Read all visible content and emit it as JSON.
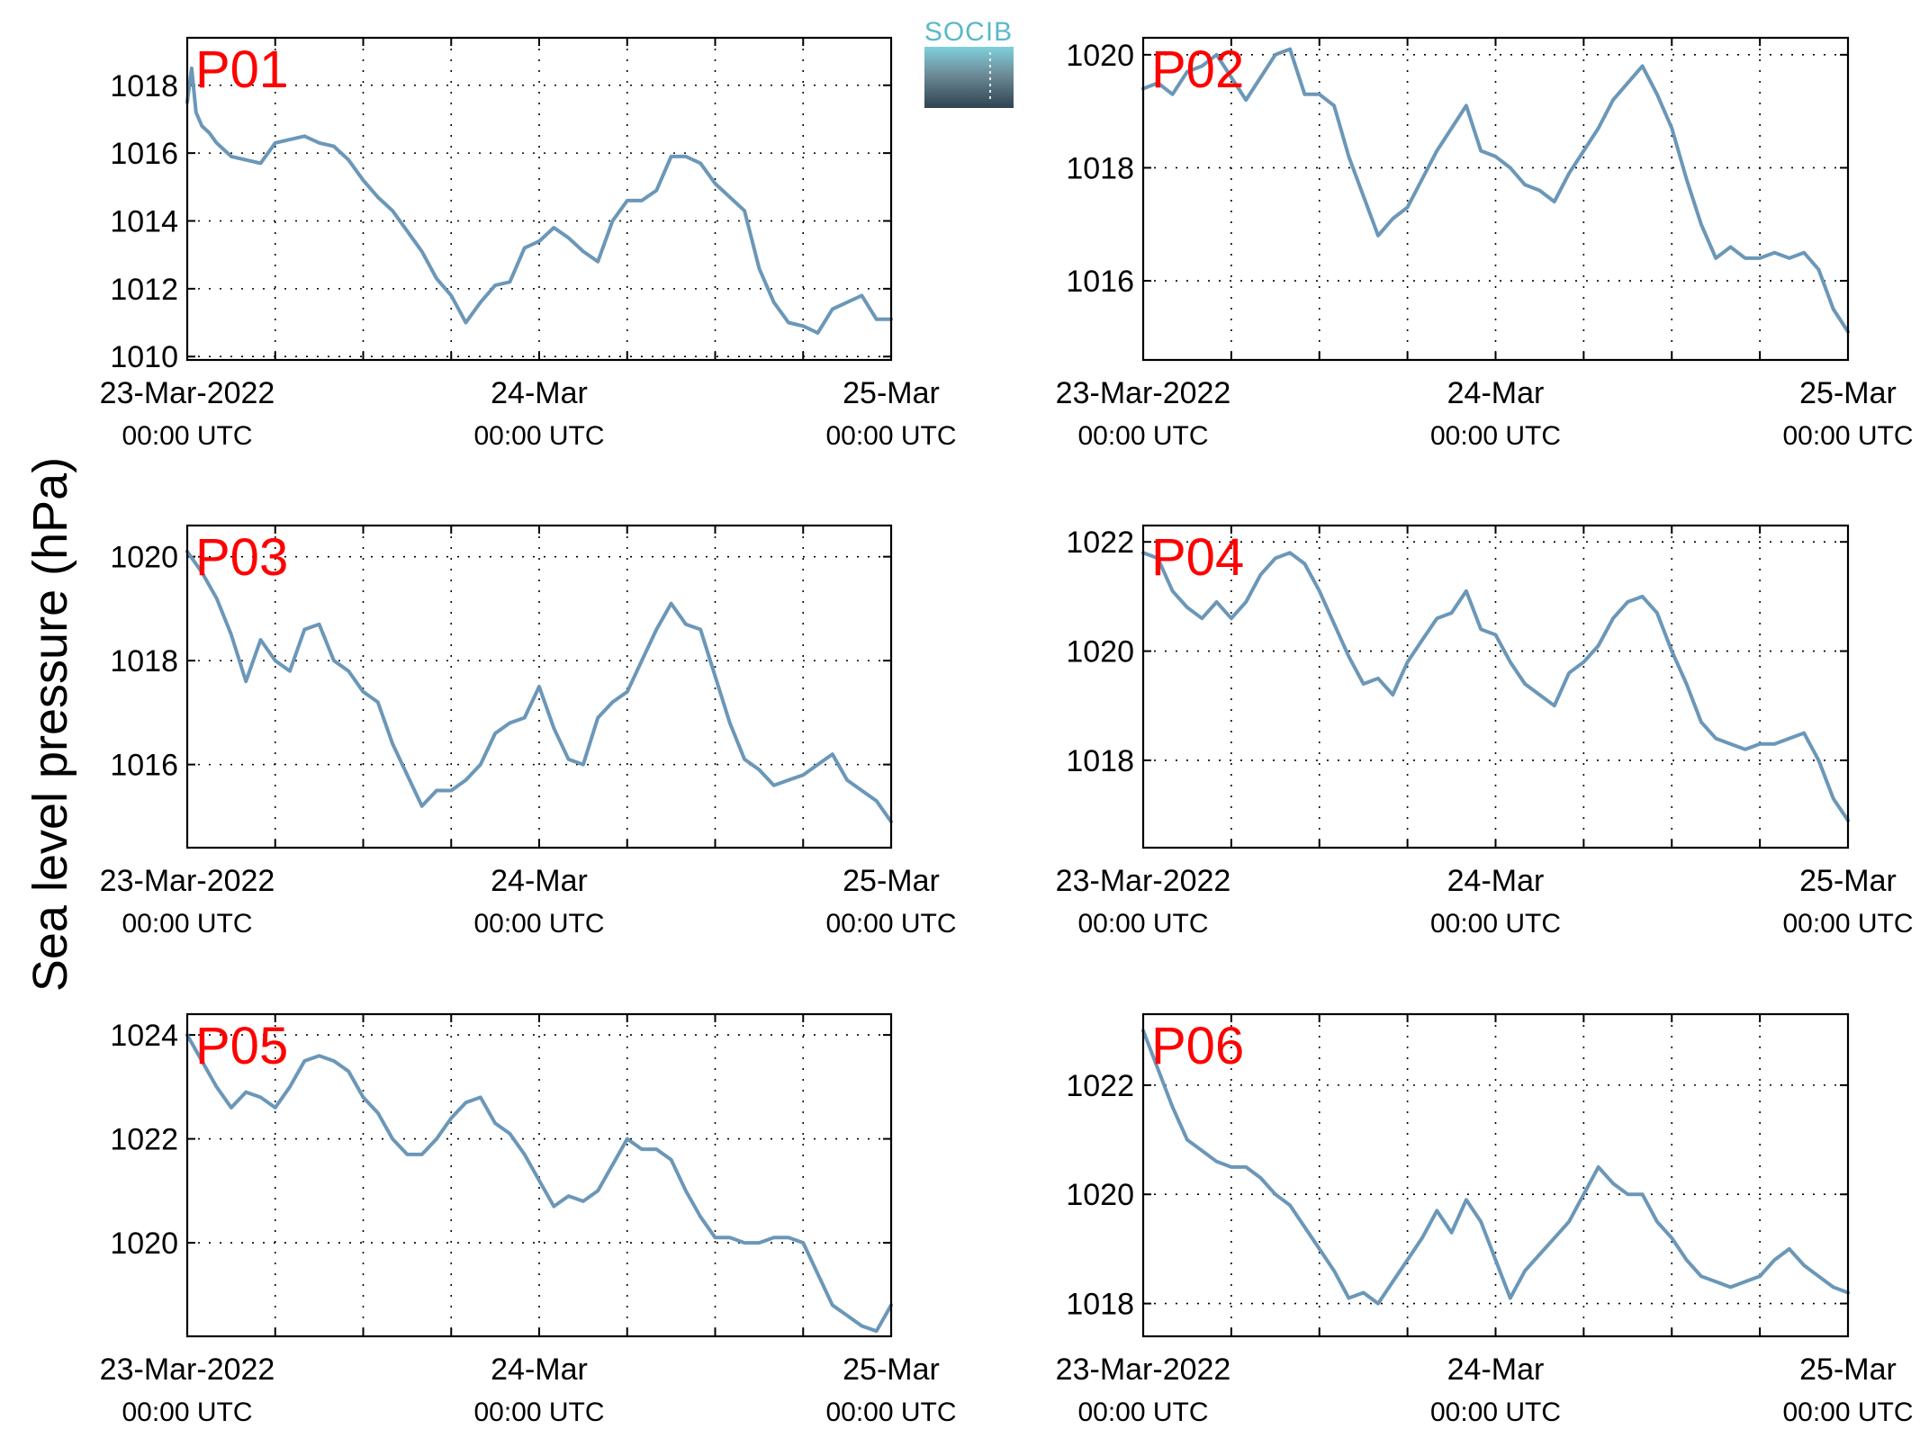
{
  "ylabel": "Sea level pressure (hPa)",
  "logo": {
    "text": "SOCIB"
  },
  "chart_data": [
    {
      "type": "line",
      "title": "P01",
      "xlim": [
        "2022-03-23T00:00Z",
        "2022-03-25T00:00Z"
      ],
      "ylim": [
        1009.9,
        1019.4
      ],
      "yticks": [
        1010,
        1012,
        1014,
        1016,
        1018
      ],
      "xticks": [
        {
          "label": "23-Mar-2022",
          "sub": "00:00 UTC"
        },
        {
          "label": "24-Mar",
          "sub": "00:00 UTC"
        },
        {
          "label": "25-Mar",
          "sub": "00:00 UTC"
        }
      ],
      "grid": true,
      "color": "#6b97b8",
      "series": [
        {
          "hours": [
            0,
            0.3,
            0.6,
            1,
            1.5,
            2,
            3,
            4,
            5,
            6,
            7,
            8,
            9,
            10,
            11,
            12,
            13,
            14,
            15,
            16,
            17,
            18,
            19,
            20,
            21,
            22,
            23,
            24,
            25,
            26,
            27,
            28,
            29,
            30,
            31,
            32,
            33,
            34,
            35,
            36,
            37,
            38,
            39,
            40,
            41,
            42,
            43,
            44,
            45,
            46,
            47,
            48
          ],
          "values": [
            1017.5,
            1018.5,
            1017.2,
            1016.8,
            1016.6,
            1016.3,
            1015.9,
            1015.8,
            1015.7,
            1016.3,
            1016.4,
            1016.5,
            1016.3,
            1016.2,
            1015.8,
            1015.2,
            1014.7,
            1014.3,
            1013.7,
            1013.1,
            1012.3,
            1011.8,
            1011.0,
            1011.6,
            1012.1,
            1012.2,
            1013.2,
            1013.4,
            1013.8,
            1013.5,
            1013.1,
            1012.8,
            1014.0,
            1014.6,
            1014.6,
            1014.9,
            1015.9,
            1015.9,
            1015.7,
            1015.1,
            1014.7,
            1014.3,
            1012.6,
            1011.6,
            1011.0,
            1010.9,
            1010.7,
            1011.4,
            1011.6,
            1011.8,
            1011.1,
            1011.1
          ]
        }
      ]
    },
    {
      "type": "line",
      "title": "P02",
      "xlim": [
        "2022-03-23T00:00Z",
        "2022-03-25T00:00Z"
      ],
      "ylim": [
        1014.6,
        1020.3
      ],
      "yticks": [
        1016,
        1018,
        1020
      ],
      "xticks": [
        {
          "label": "23-Mar-2022",
          "sub": "00:00 UTC"
        },
        {
          "label": "24-Mar",
          "sub": "00:00 UTC"
        },
        {
          "label": "25-Mar",
          "sub": "00:00 UTC"
        }
      ],
      "grid": true,
      "color": "#6b97b8",
      "series": [
        {
          "hours": [
            0,
            1,
            2,
            3,
            4,
            5,
            6,
            7,
            8,
            9,
            10,
            11,
            12,
            13,
            14,
            15,
            16,
            17,
            18,
            19,
            20,
            21,
            22,
            23,
            24,
            25,
            26,
            27,
            28,
            29,
            30,
            31,
            32,
            33,
            34,
            35,
            36,
            37,
            38,
            39,
            40,
            41,
            42,
            43,
            44,
            45,
            46,
            47,
            48
          ],
          "values": [
            1019.4,
            1019.5,
            1019.3,
            1019.7,
            1019.8,
            1020.0,
            1019.6,
            1019.2,
            1019.6,
            1020.0,
            1020.1,
            1019.3,
            1019.3,
            1019.1,
            1018.2,
            1017.5,
            1016.8,
            1017.1,
            1017.3,
            1017.8,
            1018.3,
            1018.7,
            1019.1,
            1018.3,
            1018.2,
            1018.0,
            1017.7,
            1017.6,
            1017.4,
            1017.9,
            1018.3,
            1018.7,
            1019.2,
            1019.5,
            1019.8,
            1019.3,
            1018.7,
            1017.8,
            1017.0,
            1016.4,
            1016.6,
            1016.4,
            1016.4,
            1016.5,
            1016.4,
            1016.5,
            1016.2,
            1015.5,
            1015.1
          ]
        }
      ]
    },
    {
      "type": "line",
      "title": "P03",
      "xlim": [
        "2022-03-23T00:00Z",
        "2022-03-25T00:00Z"
      ],
      "ylim": [
        1014.4,
        1020.6
      ],
      "yticks": [
        1016,
        1018,
        1020
      ],
      "xticks": [
        {
          "label": "23-Mar-2022",
          "sub": "00:00 UTC"
        },
        {
          "label": "24-Mar",
          "sub": "00:00 UTC"
        },
        {
          "label": "25-Mar",
          "sub": "00:00 UTC"
        }
      ],
      "grid": true,
      "color": "#6b97b8",
      "series": [
        {
          "hours": [
            0,
            1,
            2,
            3,
            4,
            5,
            6,
            7,
            8,
            9,
            10,
            11,
            12,
            13,
            14,
            15,
            16,
            17,
            18,
            19,
            20,
            21,
            22,
            23,
            24,
            25,
            26,
            27,
            28,
            29,
            30,
            31,
            32,
            33,
            34,
            35,
            36,
            37,
            38,
            39,
            40,
            41,
            42,
            43,
            44,
            45,
            46,
            47,
            48
          ],
          "values": [
            1020.1,
            1019.7,
            1019.2,
            1018.5,
            1017.6,
            1018.4,
            1018.0,
            1017.8,
            1018.6,
            1018.7,
            1018.0,
            1017.8,
            1017.4,
            1017.2,
            1016.4,
            1015.8,
            1015.2,
            1015.5,
            1015.5,
            1015.7,
            1016.0,
            1016.6,
            1016.8,
            1016.9,
            1017.5,
            1016.7,
            1016.1,
            1016.0,
            1016.9,
            1017.2,
            1017.4,
            1018.0,
            1018.6,
            1019.1,
            1018.7,
            1018.6,
            1017.7,
            1016.8,
            1016.1,
            1015.9,
            1015.6,
            1015.7,
            1015.8,
            1016.0,
            1016.2,
            1015.7,
            1015.5,
            1015.3,
            1014.9
          ]
        }
      ]
    },
    {
      "type": "line",
      "title": "P04",
      "xlim": [
        "2022-03-23T00:00Z",
        "2022-03-25T00:00Z"
      ],
      "ylim": [
        1016.4,
        1022.3
      ],
      "yticks": [
        1018,
        1020,
        1022
      ],
      "xticks": [
        {
          "label": "23-Mar-2022",
          "sub": "00:00 UTC"
        },
        {
          "label": "24-Mar",
          "sub": "00:00 UTC"
        },
        {
          "label": "25-Mar",
          "sub": "00:00 UTC"
        }
      ],
      "grid": true,
      "color": "#6b97b8",
      "series": [
        {
          "hours": [
            0,
            1,
            2,
            3,
            4,
            5,
            6,
            7,
            8,
            9,
            10,
            11,
            12,
            13,
            14,
            15,
            16,
            17,
            18,
            19,
            20,
            21,
            22,
            23,
            24,
            25,
            26,
            27,
            28,
            29,
            30,
            31,
            32,
            33,
            34,
            35,
            36,
            37,
            38,
            39,
            40,
            41,
            42,
            43,
            44,
            45,
            46,
            47,
            48
          ],
          "values": [
            1021.8,
            1021.7,
            1021.1,
            1020.8,
            1020.6,
            1020.9,
            1020.6,
            1020.9,
            1021.4,
            1021.7,
            1021.8,
            1021.6,
            1021.1,
            1020.5,
            1019.9,
            1019.4,
            1019.5,
            1019.2,
            1019.8,
            1020.2,
            1020.6,
            1020.7,
            1021.1,
            1020.4,
            1020.3,
            1019.8,
            1019.4,
            1019.2,
            1019.0,
            1019.6,
            1019.8,
            1020.1,
            1020.6,
            1020.9,
            1021.0,
            1020.7,
            1020.0,
            1019.4,
            1018.7,
            1018.4,
            1018.3,
            1018.2,
            1018.3,
            1018.3,
            1018.4,
            1018.5,
            1018.0,
            1017.3,
            1016.9
          ]
        }
      ]
    },
    {
      "type": "line",
      "title": "P05",
      "xlim": [
        "2022-03-23T00:00Z",
        "2022-03-25T00:00Z"
      ],
      "ylim": [
        1018.2,
        1024.4
      ],
      "yticks": [
        1020,
        1022,
        1024
      ],
      "xticks": [
        {
          "label": "23-Mar-2022",
          "sub": "00:00 UTC"
        },
        {
          "label": "24-Mar",
          "sub": "00:00 UTC"
        },
        {
          "label": "25-Mar",
          "sub": "00:00 UTC"
        }
      ],
      "grid": true,
      "color": "#6b97b8",
      "series": [
        {
          "hours": [
            0,
            1,
            2,
            3,
            4,
            5,
            6,
            7,
            8,
            9,
            10,
            11,
            12,
            13,
            14,
            15,
            16,
            17,
            18,
            19,
            20,
            21,
            22,
            23,
            24,
            25,
            26,
            27,
            28,
            29,
            30,
            31,
            32,
            33,
            34,
            35,
            36,
            37,
            38,
            39,
            40,
            41,
            42,
            43,
            44,
            45,
            46,
            47,
            48
          ],
          "values": [
            1024.0,
            1023.5,
            1023.0,
            1022.6,
            1022.9,
            1022.8,
            1022.6,
            1023.0,
            1023.5,
            1023.6,
            1023.5,
            1023.3,
            1022.8,
            1022.5,
            1022.0,
            1021.7,
            1021.7,
            1022.0,
            1022.4,
            1022.7,
            1022.8,
            1022.3,
            1022.1,
            1021.7,
            1021.2,
            1020.7,
            1020.9,
            1020.8,
            1021.0,
            1021.5,
            1022.0,
            1021.8,
            1021.8,
            1021.6,
            1021.0,
            1020.5,
            1020.1,
            1020.1,
            1020.0,
            1020.0,
            1020.1,
            1020.1,
            1020.0,
            1019.4,
            1018.8,
            1018.6,
            1018.4,
            1018.3,
            1018.8
          ]
        }
      ]
    },
    {
      "type": "line",
      "title": "P06",
      "xlim": [
        "2022-03-23T00:00Z",
        "2022-03-25T00:00Z"
      ],
      "ylim": [
        1017.4,
        1023.3
      ],
      "yticks": [
        1018,
        1020,
        1022
      ],
      "xticks": [
        {
          "label": "23-Mar-2022",
          "sub": "00:00 UTC"
        },
        {
          "label": "24-Mar",
          "sub": "00:00 UTC"
        },
        {
          "label": "25-Mar",
          "sub": "00:00 UTC"
        }
      ],
      "grid": true,
      "color": "#6b97b8",
      "series": [
        {
          "hours": [
            0,
            1,
            2,
            3,
            4,
            5,
            6,
            7,
            8,
            9,
            10,
            11,
            12,
            13,
            14,
            15,
            16,
            17,
            18,
            19,
            20,
            21,
            22,
            23,
            24,
            25,
            26,
            27,
            28,
            29,
            30,
            31,
            32,
            33,
            34,
            35,
            36,
            37,
            38,
            39,
            40,
            41,
            42,
            43,
            44,
            45,
            46,
            47,
            48
          ],
          "values": [
            1023.0,
            1022.3,
            1021.6,
            1021.0,
            1020.8,
            1020.6,
            1020.5,
            1020.5,
            1020.3,
            1020.0,
            1019.8,
            1019.4,
            1019.0,
            1018.6,
            1018.1,
            1018.2,
            1018.0,
            1018.4,
            1018.8,
            1019.2,
            1019.7,
            1019.3,
            1019.9,
            1019.5,
            1018.8,
            1018.1,
            1018.6,
            1018.9,
            1019.2,
            1019.5,
            1020.0,
            1020.5,
            1020.2,
            1020.0,
            1020.0,
            1019.5,
            1019.2,
            1018.8,
            1018.5,
            1018.4,
            1018.3,
            1018.4,
            1018.5,
            1018.8,
            1019.0,
            1018.7,
            1018.5,
            1018.3,
            1018.2
          ]
        }
      ]
    }
  ]
}
